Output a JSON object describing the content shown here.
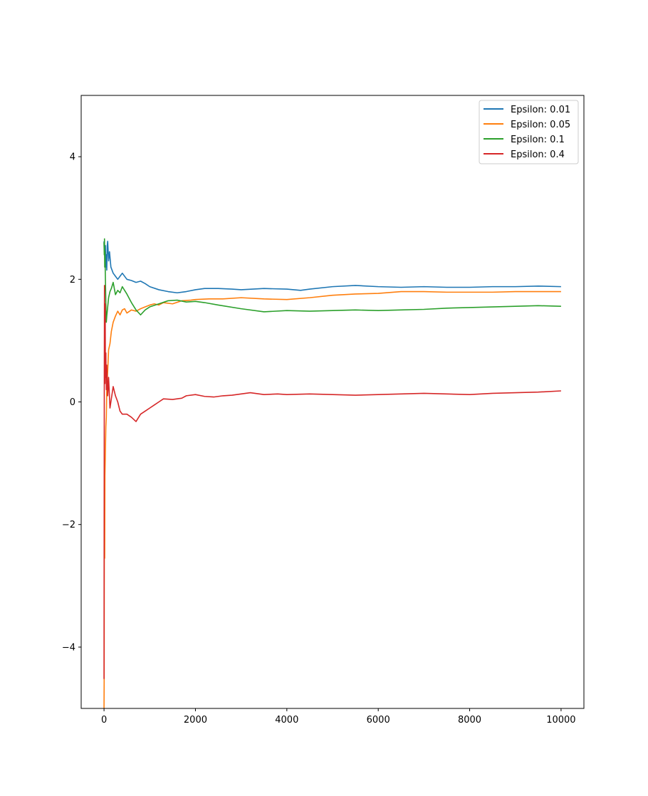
{
  "chart_data": {
    "type": "line",
    "title": "",
    "xlabel": "",
    "ylabel": "",
    "xlim": [
      -500,
      10500
    ],
    "ylim": [
      -5,
      5
    ],
    "xticks": [
      0,
      2000,
      4000,
      6000,
      8000,
      10000
    ],
    "xtick_labels": [
      "0",
      "2000",
      "4000",
      "6000",
      "8000",
      "10000"
    ],
    "yticks": [
      -4,
      -2,
      0,
      2,
      4
    ],
    "ytick_labels": [
      "−4",
      "−2",
      "0",
      "2",
      "4"
    ],
    "grid": false,
    "legend_position": "top-right",
    "series": [
      {
        "name": "Epsilon: 0.01",
        "color": "#1f77b4",
        "x": [
          0,
          5,
          10,
          20,
          30,
          40,
          50,
          60,
          70,
          80,
          100,
          120,
          150,
          200,
          250,
          300,
          350,
          400,
          500,
          600,
          700,
          800,
          900,
          1000,
          1200,
          1400,
          1600,
          1800,
          2000,
          2200,
          2500,
          2800,
          3000,
          3500,
          4000,
          4300,
          4500,
          5000,
          5500,
          6000,
          6500,
          7000,
          7500,
          8000,
          8500,
          9000,
          9500,
          10000
        ],
        "y": [
          2.62,
          2.45,
          2.58,
          2.3,
          2.55,
          2.2,
          2.4,
          2.15,
          2.55,
          2.62,
          2.3,
          2.45,
          2.2,
          2.1,
          2.05,
          2.0,
          2.05,
          2.1,
          2.0,
          1.98,
          1.95,
          1.97,
          1.93,
          1.88,
          1.83,
          1.8,
          1.78,
          1.8,
          1.83,
          1.85,
          1.85,
          1.84,
          1.83,
          1.85,
          1.84,
          1.82,
          1.84,
          1.88,
          1.9,
          1.88,
          1.87,
          1.88,
          1.87,
          1.87,
          1.88,
          1.88,
          1.89,
          1.88
        ]
      },
      {
        "name": "Epsilon: 0.05",
        "color": "#ff7f0e",
        "x": [
          0,
          3,
          6,
          10,
          15,
          20,
          30,
          40,
          50,
          60,
          80,
          100,
          130,
          160,
          200,
          250,
          300,
          350,
          400,
          450,
          500,
          600,
          700,
          800,
          900,
          1000,
          1100,
          1200,
          1300,
          1500,
          1700,
          1900,
          2000,
          2300,
          2600,
          3000,
          3500,
          4000,
          4500,
          5000,
          5500,
          6000,
          6500,
          7000,
          7500,
          8000,
          8500,
          9000,
          9500,
          10000
        ],
        "y": [
          -5.0,
          -4.55,
          -2.6,
          -2.2,
          -2.55,
          -1.2,
          -0.8,
          -0.4,
          -0.25,
          0.2,
          0.5,
          0.85,
          0.95,
          1.15,
          1.3,
          1.4,
          1.48,
          1.42,
          1.5,
          1.52,
          1.45,
          1.5,
          1.48,
          1.52,
          1.55,
          1.58,
          1.6,
          1.58,
          1.62,
          1.6,
          1.65,
          1.66,
          1.67,
          1.68,
          1.68,
          1.7,
          1.68,
          1.67,
          1.7,
          1.74,
          1.76,
          1.77,
          1.8,
          1.8,
          1.79,
          1.79,
          1.79,
          1.8,
          1.8,
          1.8
        ]
      },
      {
        "name": "Epsilon: 0.1",
        "color": "#2ca02c",
        "x": [
          0,
          5,
          10,
          15,
          20,
          30,
          40,
          50,
          60,
          80,
          100,
          130,
          160,
          200,
          250,
          300,
          350,
          400,
          450,
          500,
          600,
          700,
          800,
          900,
          1000,
          1200,
          1400,
          1600,
          1800,
          2000,
          2200,
          2500,
          3000,
          3500,
          4000,
          4500,
          5000,
          5500,
          6000,
          6500,
          7000,
          7500,
          8000,
          8500,
          9000,
          9500,
          10000
        ],
        "y": [
          2.6,
          2.4,
          2.66,
          2.2,
          2.45,
          2.0,
          1.6,
          1.3,
          1.4,
          1.55,
          1.7,
          1.8,
          1.85,
          1.95,
          1.75,
          1.82,
          1.78,
          1.88,
          1.82,
          1.76,
          1.62,
          1.5,
          1.42,
          1.5,
          1.55,
          1.6,
          1.65,
          1.66,
          1.63,
          1.64,
          1.62,
          1.58,
          1.52,
          1.47,
          1.49,
          1.48,
          1.49,
          1.5,
          1.49,
          1.5,
          1.51,
          1.53,
          1.54,
          1.55,
          1.56,
          1.57,
          1.56
        ]
      },
      {
        "name": "Epsilon: 0.4",
        "color": "#d62728",
        "x": [
          0,
          3,
          6,
          10,
          15,
          20,
          25,
          30,
          40,
          50,
          60,
          80,
          100,
          130,
          160,
          200,
          250,
          300,
          350,
          400,
          500,
          600,
          700,
          800,
          900,
          1000,
          1100,
          1200,
          1300,
          1500,
          1700,
          1800,
          2000,
          2200,
          2400,
          2600,
          2800,
          3000,
          3200,
          3500,
          3800,
          4000,
          4500,
          5000,
          5500,
          6000,
          6500,
          7000,
          7500,
          8000,
          8500,
          9000,
          9500,
          10000
        ],
        "y": [
          -4.52,
          -2.0,
          0.5,
          1.9,
          1.0,
          0.3,
          1.6,
          0.4,
          0.8,
          0.2,
          0.6,
          0.1,
          0.4,
          -0.1,
          0.05,
          0.25,
          0.1,
          0.0,
          -0.15,
          -0.2,
          -0.2,
          -0.25,
          -0.32,
          -0.2,
          -0.15,
          -0.1,
          -0.05,
          0.0,
          0.05,
          0.04,
          0.06,
          0.1,
          0.12,
          0.09,
          0.08,
          0.1,
          0.11,
          0.13,
          0.15,
          0.12,
          0.13,
          0.12,
          0.13,
          0.12,
          0.11,
          0.12,
          0.13,
          0.14,
          0.13,
          0.12,
          0.14,
          0.15,
          0.16,
          0.18
        ]
      }
    ]
  }
}
